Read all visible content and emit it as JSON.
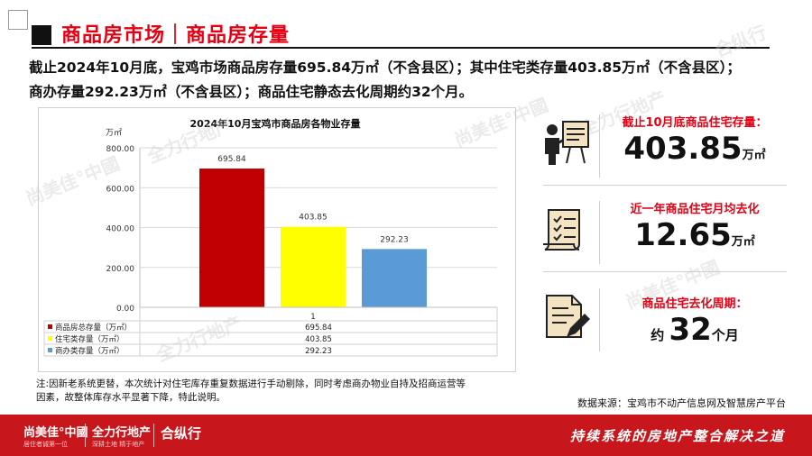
{
  "header": {
    "title": "商品房市场｜商品房存量"
  },
  "summary": {
    "line1": "截止2024年10月底，宝鸡市场商品房存量695.84万㎡（不含县区）；其中住宅类存量403.85万㎡（不含县区）；",
    "line2": "商办存量292.23万㎡（不含县区）；商品住宅静态去化周期约32个月。"
  },
  "chart_data": {
    "type": "bar",
    "title": "2024年10月宝鸡市商品房各物业存量",
    "ylabel": "万㎡",
    "categories": [
      "1"
    ],
    "ylim": [
      0,
      800
    ],
    "yticks": [
      "0.00",
      "200.00",
      "400.00",
      "600.00",
      "800.00"
    ],
    "grid": true,
    "legend": "bottom-table",
    "series": [
      {
        "name": "商品房总存量（万㎡）",
        "values": [
          695.84
        ],
        "label": "695.84",
        "color": "#c00000"
      },
      {
        "name": "住宅类存量（万㎡）",
        "values": [
          403.85
        ],
        "label": "403.85",
        "color": "#ffff00"
      },
      {
        "name": "商办类存量（万㎡）",
        "values": [
          292.23
        ],
        "label": "292.23",
        "color": "#5b9bd5"
      }
    ]
  },
  "kpis": [
    {
      "label": "截止10月底商品住宅存量：",
      "prefix": "",
      "value": "403.85",
      "unit": "万㎡",
      "icon": "presentation-board-icon"
    },
    {
      "label": "近一年商品住宅月均去化",
      "prefix": "",
      "value": "12.65",
      "unit": "万㎡",
      "icon": "checklist-icon"
    },
    {
      "label": "商品住宅去化周期：",
      "prefix": "约 ",
      "value": "32",
      "unit": "个月",
      "icon": "document-pen-icon"
    }
  ],
  "note": {
    "line1": "注:因新老系统更替，本次统计对住宅库存重复数据进行手动剔除，同时考虑商办物业自持及招商运营等",
    "line2": "因素，故整体库存水平显著下降，特此说明。"
  },
  "source": "数据来源：宝鸡市不动产信息网及智慧房产平台",
  "footer": {
    "brand1": "尚美佳°中國",
    "brand1_sub": "居住者诚第一位",
    "brand2": "全力行地产",
    "brand2_sub": "深耕土地 精于地产",
    "brand3": "合纵行",
    "slogan": "持续系统的房地产整合解决之道"
  },
  "colors": {
    "accent": "#e60012",
    "footer_bg": "#c8161d"
  }
}
